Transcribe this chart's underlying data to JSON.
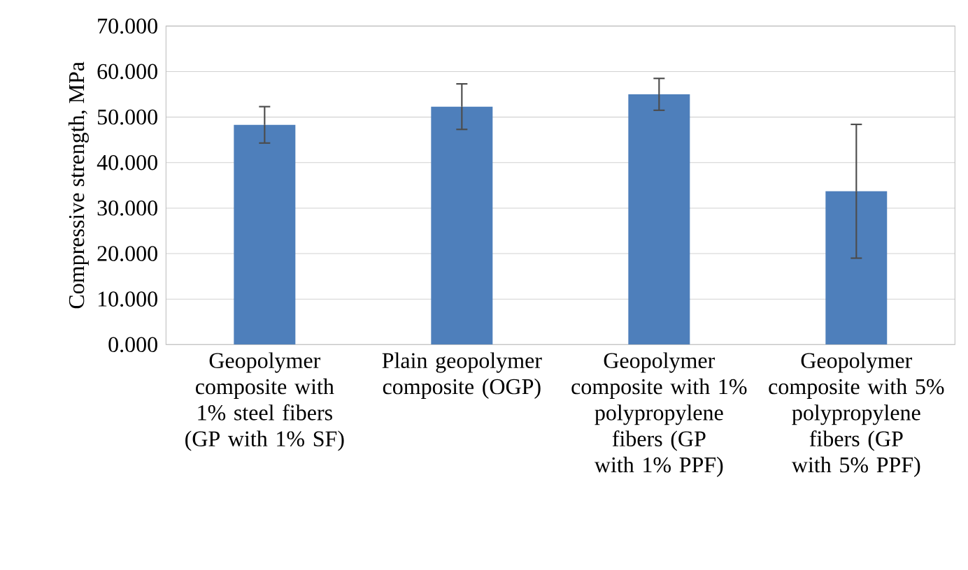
{
  "chart_data": {
    "type": "bar",
    "ylabel": "Compressive strength, MPa",
    "categories": [
      "Geopolymer composite with 1% steel fibers (GP with 1% SF)",
      "Plain geopolymer composite (OGP)",
      "Geopolymer composite with 1% polypropylene fibers (GP with 1% PPF)",
      "Geopolymer composite with 5% polypropylene fibers (GP with 5% PPF)"
    ],
    "values": [
      48.3,
      52.3,
      55.0,
      33.7
    ],
    "errors": [
      4.0,
      5.0,
      3.5,
      14.7
    ],
    "color": "#4e7fbb",
    "ylim": [
      0,
      70
    ],
    "yticks": [
      {
        "value": 0,
        "label": "0.000"
      },
      {
        "value": 10,
        "label": "10.000"
      },
      {
        "value": 20,
        "label": "20.000"
      },
      {
        "value": 30,
        "label": "30.000"
      },
      {
        "value": 40,
        "label": "40.000"
      },
      {
        "value": 50,
        "label": "50.000"
      },
      {
        "value": 60,
        "label": "60.000"
      },
      {
        "value": 70,
        "label": "70.000"
      }
    ],
    "grid": "y"
  }
}
